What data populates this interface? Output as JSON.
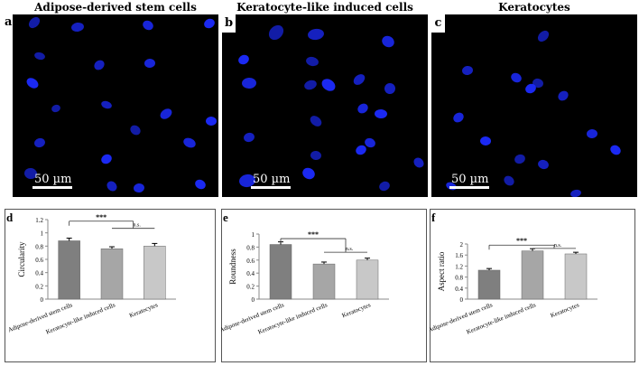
{
  "figure": {
    "micrographs": [
      {
        "letter": "a",
        "title": "Adipose-derived stem cells",
        "scale_label": "50 µm"
      },
      {
        "letter": "b",
        "title": "Keratocyte-like induced cells",
        "scale_label": "50 µm"
      },
      {
        "letter": "c",
        "title": "Keratocytes",
        "scale_label": "50 µm"
      }
    ],
    "nucleus_color": "#1c2bff",
    "background_color": "#000000"
  },
  "chart_data": [
    {
      "letter": "d",
      "type": "bar",
      "categories": [
        "Adipose-derived stem cells",
        "Keratocyte-like induced cells",
        "Keratocytes"
      ],
      "values": [
        0.88,
        0.76,
        0.8
      ],
      "errors": [
        0.04,
        0.03,
        0.04
      ],
      "ylabel": "Circularity",
      "ylim": [
        0,
        1.2
      ],
      "yticks": [
        "0",
        "0.2",
        "0.4",
        "0.6",
        "0.8",
        "1",
        "1.2"
      ],
      "bar_colors": [
        "#7f7f7f",
        "#a6a6a6",
        "#c8c8c8"
      ],
      "annotations": {
        "sig": "***",
        "ns": "n.s."
      }
    },
    {
      "letter": "e",
      "type": "bar",
      "categories": [
        "Adipose-derived stem cells",
        "Keratocyte-like induced cells",
        "Keratocytes"
      ],
      "values": [
        0.84,
        0.54,
        0.6
      ],
      "errors": [
        0.04,
        0.03,
        0.03
      ],
      "ylabel": "Roundness",
      "ylim": [
        0,
        1
      ],
      "yticks": [
        "0",
        "0.2",
        "0.4",
        "0.6",
        "0.8",
        "1"
      ],
      "bar_colors": [
        "#7f7f7f",
        "#a6a6a6",
        "#c8c8c8"
      ],
      "annotations": {
        "sig": "***",
        "ns": "n.s."
      }
    },
    {
      "letter": "f",
      "type": "bar",
      "categories": [
        "Adipose-derived stem cells",
        "Keratocyte-like induced cells",
        "Keratocytes"
      ],
      "values": [
        1.05,
        1.75,
        1.64
      ],
      "errors": [
        0.06,
        0.08,
        0.06
      ],
      "ylabel": "Aspect ratio",
      "ylim": [
        0,
        2
      ],
      "yticks": [
        "0",
        "0.4",
        "0.8",
        "1.2",
        "1.6",
        "2"
      ],
      "bar_colors": [
        "#7f7f7f",
        "#a6a6a6",
        "#c8c8c8"
      ],
      "annotations": {
        "sig": "***",
        "ns": "n.s."
      }
    }
  ]
}
